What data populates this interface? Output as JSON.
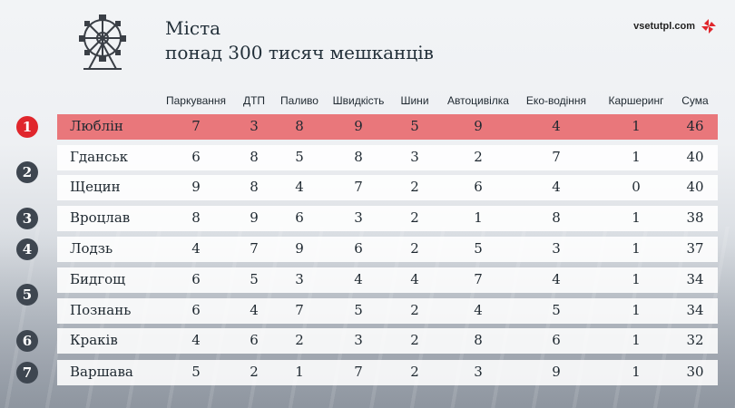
{
  "header": {
    "title_line1": "Міста",
    "title_line2": "понад 300 тисяч мешканців",
    "site": "vsetutpl.com",
    "logo_icon": "ferris-wheel-icon",
    "brand_icon": "pinwheel-icon",
    "accent_color": "#e0262c"
  },
  "columns": [
    "Паркування",
    "ДТП",
    "Паливо",
    "Швидкість",
    "Шини",
    "Автоцивілка",
    "Еко-водіння",
    "Каршеринг",
    "Сума"
  ],
  "rows": [
    {
      "city": "Люблін",
      "values": [
        "7",
        "3",
        "8",
        "9",
        "5",
        "9",
        "4",
        "1",
        "46"
      ]
    },
    {
      "city": "Гданськ",
      "values": [
        "6",
        "8",
        "5",
        "8",
        "3",
        "2",
        "7",
        "1",
        "40"
      ]
    },
    {
      "city": "Щецин",
      "values": [
        "9",
        "8",
        "4",
        "7",
        "2",
        "6",
        "4",
        "0",
        "40"
      ]
    },
    {
      "city": "Вроцлав",
      "values": [
        "8",
        "9",
        "6",
        "3",
        "2",
        "1",
        "8",
        "1",
        "38"
      ]
    },
    {
      "city": "Лодзь",
      "values": [
        "4",
        "7",
        "9",
        "6",
        "2",
        "5",
        "3",
        "1",
        "37"
      ]
    },
    {
      "city": "Бидгощ",
      "values": [
        "6",
        "5",
        "3",
        "4",
        "4",
        "7",
        "4",
        "1",
        "34"
      ]
    },
    {
      "city": "Познань",
      "values": [
        "6",
        "4",
        "7",
        "5",
        "2",
        "4",
        "5",
        "1",
        "34"
      ]
    },
    {
      "city": "Краків",
      "values": [
        "4",
        "6",
        "2",
        "3",
        "2",
        "8",
        "6",
        "1",
        "32"
      ]
    },
    {
      "city": "Варшава",
      "values": [
        "5",
        "2",
        "1",
        "7",
        "2",
        "3",
        "9",
        "1",
        "30"
      ]
    }
  ],
  "ranks": [
    {
      "label": "1",
      "highlight": true
    },
    {
      "label": "2"
    },
    {
      "label": "3"
    },
    {
      "label": "4"
    },
    {
      "label": "5"
    },
    {
      "label": "6"
    },
    {
      "label": "7"
    }
  ]
}
